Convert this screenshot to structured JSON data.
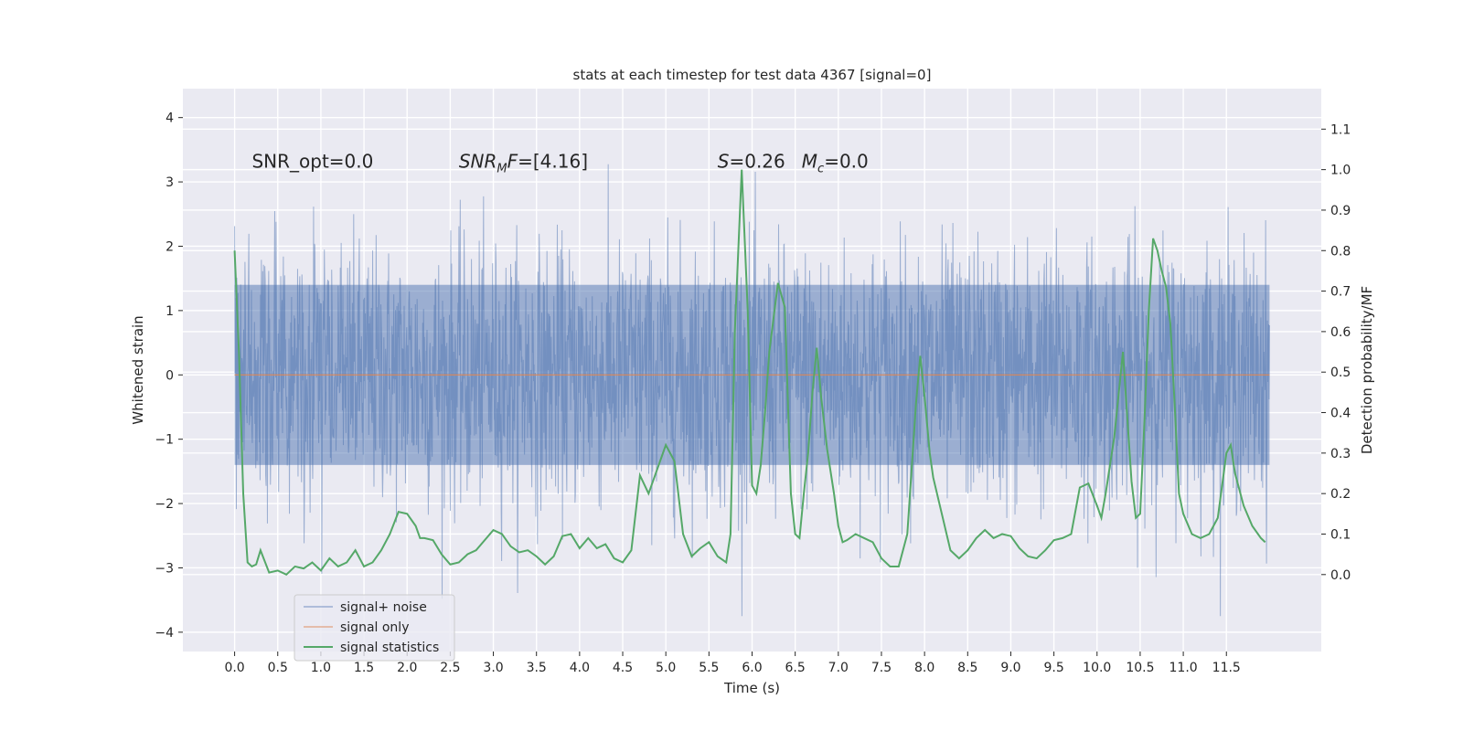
{
  "chart_data": {
    "type": "line",
    "title": "stats at each timestep for test data 4367 [signal=0]",
    "xlabel": "Time (s)",
    "ylabel_left": "Whitened strain",
    "ylabel_right": "Detection probability/MF",
    "xlim": [
      -0.6,
      12.6
    ],
    "ylim_left": [
      -4.3,
      4.45
    ],
    "ylim_right": [
      -0.19,
      1.2
    ],
    "x_ticks": [
      0.0,
      0.5,
      1.0,
      1.5,
      2.0,
      2.5,
      3.0,
      3.5,
      4.0,
      4.5,
      5.0,
      5.5,
      6.0,
      6.5,
      7.0,
      7.5,
      8.0,
      8.5,
      9.0,
      9.5,
      10.0,
      10.5,
      11.0,
      11.5
    ],
    "x_tick_labels": [
      "0.0",
      "0.5",
      "1.0",
      "1.5",
      "2.0",
      "2.5",
      "3.0",
      "3.5",
      "4.0",
      "4.5",
      "5.0",
      "5.5",
      "6.0",
      "6.5",
      "7.0",
      "7.5",
      "8.0",
      "8.5",
      "9.0",
      "9.5",
      "10.0",
      "10.5",
      "11.0",
      "11.5"
    ],
    "y_left_ticks": [
      4,
      3,
      2,
      1,
      0,
      -1,
      -2,
      -3,
      -4
    ],
    "y_left_tick_labels": [
      "4",
      "3",
      "2",
      "1",
      "0",
      "−1",
      "−2",
      "−3",
      "−4"
    ],
    "y_right_ticks": [
      1.1,
      1.0,
      0.9,
      0.8,
      0.7,
      0.6,
      0.5,
      0.4,
      0.3,
      0.2,
      0.1,
      0.0
    ],
    "y_right_tick_labels": [
      "1.1",
      "1.0",
      "0.9",
      "0.8",
      "0.7",
      "0.6",
      "0.5",
      "0.4",
      "0.3",
      "0.2",
      "0.1",
      "0.0"
    ],
    "grid": true,
    "legend_position": "lower-left",
    "series": [
      {
        "name": "signal+ noise",
        "axis": "left",
        "color": "#4c72b0",
        "x_range": [
          0.0,
          12.0
        ],
        "typical_abs_amplitude": 1.4,
        "y_max": 4.1,
        "y_min": -3.75
      },
      {
        "name": "signal only",
        "axis": "left",
        "color": "#dd8452",
        "x_range": [
          0.0,
          12.0
        ],
        "constant_value": 0.0
      },
      {
        "name": "signal statistics",
        "axis": "right",
        "color": "#55a868",
        "x": [
          0.0,
          0.05,
          0.1,
          0.15,
          0.2,
          0.25,
          0.3,
          0.4,
          0.5,
          0.6,
          0.7,
          0.8,
          0.9,
          1.0,
          1.1,
          1.2,
          1.3,
          1.4,
          1.5,
          1.6,
          1.7,
          1.8,
          1.9,
          2.0,
          2.1,
          2.15,
          2.2,
          2.3,
          2.4,
          2.5,
          2.6,
          2.7,
          2.8,
          2.9,
          3.0,
          3.1,
          3.2,
          3.3,
          3.4,
          3.5,
          3.6,
          3.7,
          3.8,
          3.9,
          4.0,
          4.1,
          4.2,
          4.3,
          4.4,
          4.5,
          4.6,
          4.7,
          4.8,
          4.9,
          5.0,
          5.05,
          5.1,
          5.2,
          5.3,
          5.4,
          5.5,
          5.6,
          5.7,
          5.75,
          5.8,
          5.88,
          5.95,
          6.0,
          6.05,
          6.1,
          6.15,
          6.2,
          6.3,
          6.38,
          6.45,
          6.5,
          6.55,
          6.6,
          6.65,
          6.7,
          6.75,
          6.8,
          6.87,
          6.95,
          7.0,
          7.05,
          7.1,
          7.2,
          7.3,
          7.4,
          7.5,
          7.6,
          7.7,
          7.8,
          7.9,
          7.95,
          8.0,
          8.06,
          8.1,
          8.2,
          8.3,
          8.4,
          8.5,
          8.6,
          8.7,
          8.8,
          8.9,
          9.0,
          9.1,
          9.2,
          9.3,
          9.4,
          9.5,
          9.6,
          9.7,
          9.8,
          9.9,
          10.0,
          10.05,
          10.1,
          10.2,
          10.3,
          10.4,
          10.45,
          10.5,
          10.55,
          10.6,
          10.65,
          10.7,
          10.75,
          10.8,
          10.85,
          10.9,
          10.95,
          11.0,
          11.1,
          11.2,
          11.3,
          11.4,
          11.5,
          11.55,
          11.6,
          11.7,
          11.8,
          11.9,
          11.95
        ],
        "y": [
          0.8,
          0.55,
          0.2,
          0.03,
          0.02,
          0.025,
          0.06,
          0.005,
          0.01,
          0.0,
          0.02,
          0.015,
          0.03,
          0.01,
          0.04,
          0.02,
          0.03,
          0.06,
          0.02,
          0.03,
          0.06,
          0.1,
          0.155,
          0.15,
          0.12,
          0.09,
          0.09,
          0.085,
          0.05,
          0.025,
          0.03,
          0.05,
          0.06,
          0.085,
          0.11,
          0.1,
          0.07,
          0.055,
          0.06,
          0.045,
          0.025,
          0.045,
          0.095,
          0.1,
          0.065,
          0.09,
          0.065,
          0.075,
          0.04,
          0.03,
          0.06,
          0.245,
          0.2,
          0.26,
          0.32,
          0.3,
          0.28,
          0.1,
          0.045,
          0.065,
          0.08,
          0.045,
          0.03,
          0.1,
          0.6,
          1.0,
          0.65,
          0.22,
          0.2,
          0.27,
          0.4,
          0.55,
          0.72,
          0.66,
          0.2,
          0.1,
          0.09,
          0.2,
          0.3,
          0.45,
          0.56,
          0.44,
          0.31,
          0.2,
          0.12,
          0.08,
          0.085,
          0.1,
          0.09,
          0.08,
          0.04,
          0.02,
          0.02,
          0.1,
          0.42,
          0.54,
          0.44,
          0.3,
          0.24,
          0.15,
          0.06,
          0.04,
          0.06,
          0.09,
          0.11,
          0.09,
          0.1,
          0.095,
          0.065,
          0.045,
          0.04,
          0.06,
          0.085,
          0.09,
          0.1,
          0.215,
          0.225,
          0.17,
          0.14,
          0.2,
          0.34,
          0.55,
          0.23,
          0.14,
          0.15,
          0.38,
          0.65,
          0.83,
          0.8,
          0.75,
          0.71,
          0.62,
          0.42,
          0.2,
          0.15,
          0.1,
          0.09,
          0.1,
          0.14,
          0.3,
          0.32,
          0.25,
          0.17,
          0.12,
          0.09,
          0.08
        ]
      }
    ],
    "annotations": [
      {
        "text": "SNR_opt=0.0",
        "x": 0.2,
        "y_left": 3.22
      },
      {
        "text_parts": [
          "SNR",
          "M",
          "F=[4.16]"
        ],
        "x": 2.6,
        "y_left": 3.22
      },
      {
        "text_parts": [
          "S",
          "=0.26",
          "M",
          "c",
          "=0.0"
        ],
        "x": 5.6,
        "y_left": 3.22
      }
    ]
  }
}
